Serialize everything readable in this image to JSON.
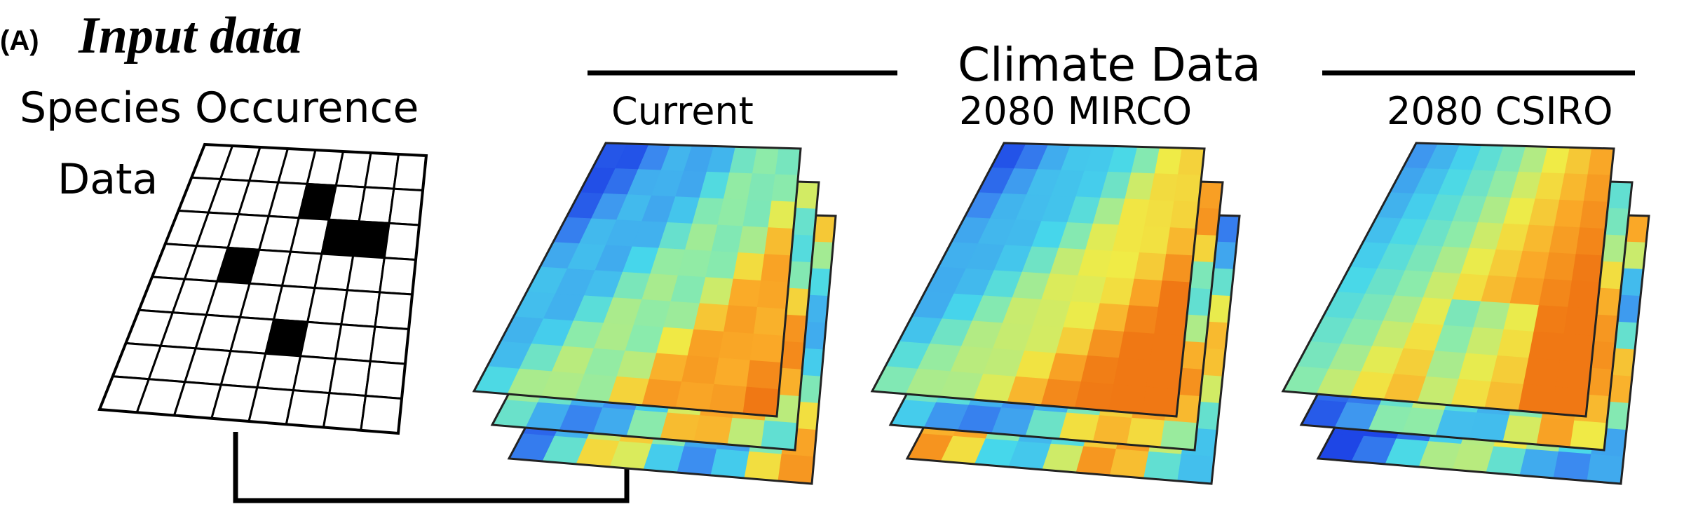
{
  "panel": {
    "tag": "(A)",
    "title": "Input data"
  },
  "occurrence": {
    "label_line1": "Species Occurence",
    "label_line2": "Data"
  },
  "climate": {
    "group_label": "Climate Data",
    "scenarios": [
      {
        "label": "Current"
      },
      {
        "label": "2080 MIRCO"
      },
      {
        "label": "2080 CSIRO"
      }
    ]
  }
}
